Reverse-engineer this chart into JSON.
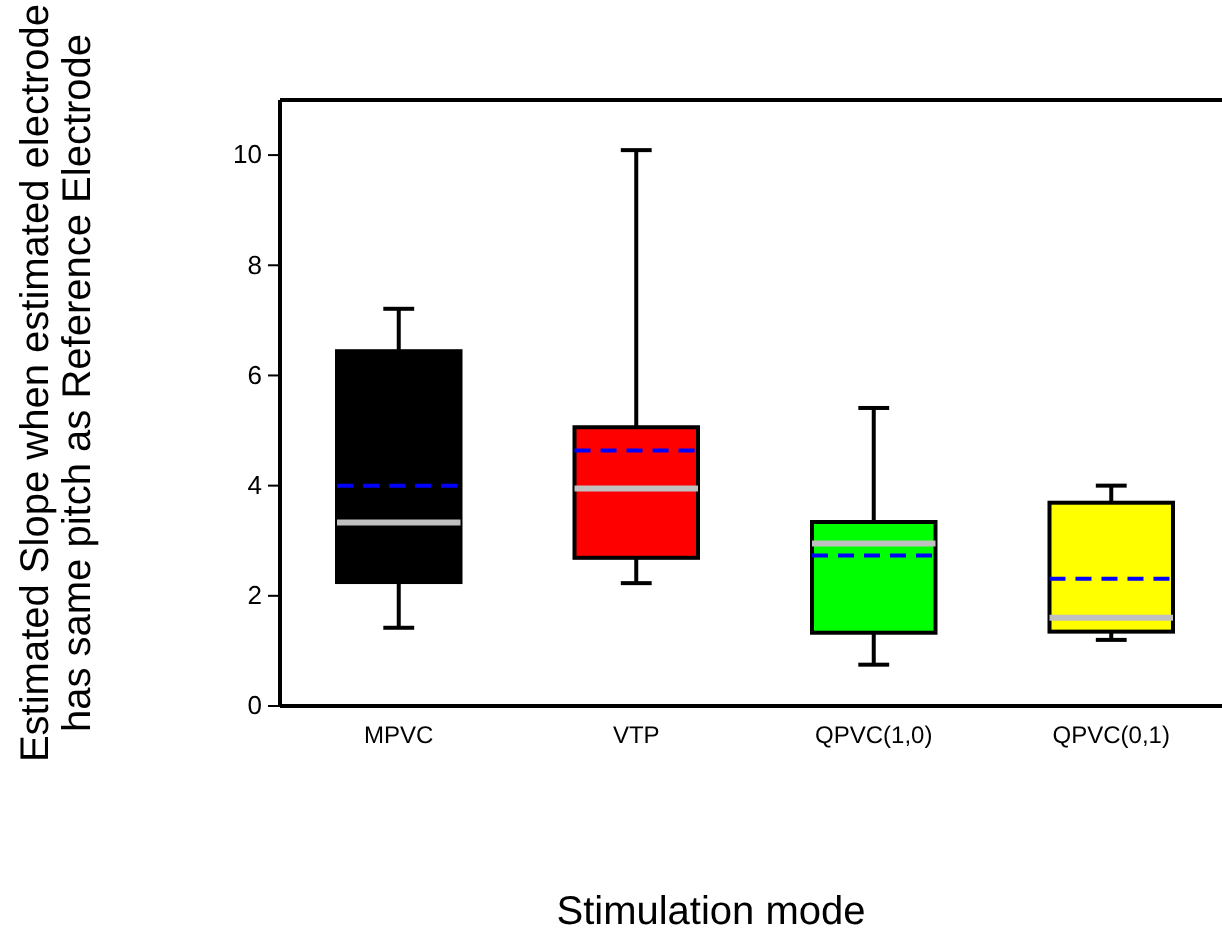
{
  "chart_data": {
    "type": "box",
    "xlabel": "Stimulation mode",
    "ylabel": "Estimated Slope when estimated electrode has same pitch as Reference Electrode",
    "categories": [
      "MPVC",
      "VTP",
      "QPVC(1,0)",
      "QPVC(0,1)"
    ],
    "colors": [
      "#000000",
      "#ff0000",
      "#00ff00",
      "#ffff00"
    ],
    "boxes": [
      {
        "low": 1.42,
        "q1": 2.25,
        "median": 3.33,
        "q3": 6.44,
        "high": 7.21,
        "mean": 4.0
      },
      {
        "low": 2.23,
        "q1": 2.69,
        "median": 3.95,
        "q3": 5.06,
        "high": 10.09,
        "mean": 4.64
      },
      {
        "low": 0.75,
        "q1": 1.33,
        "median": 2.95,
        "q3": 3.34,
        "high": 5.41,
        "mean": 2.73
      },
      {
        "low": 1.2,
        "q1": 1.35,
        "median": 1.6,
        "q3": 3.69,
        "high": 4.0,
        "mean": 2.31
      }
    ],
    "ylim": [
      0,
      11
    ],
    "yticks": [
      0,
      2,
      4,
      6,
      8,
      10
    ]
  }
}
